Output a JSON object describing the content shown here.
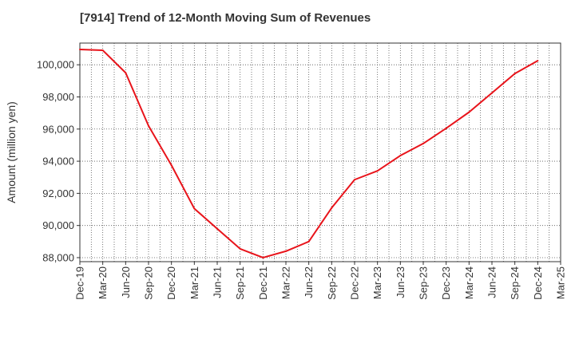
{
  "title": "[7914]  Trend of 12-Month Moving Sum of Revenues",
  "chart_data": {
    "type": "line",
    "title": "[7914]  Trend of 12-Month Moving Sum of Revenues",
    "xlabel": "",
    "ylabel": "Amount (million yen)",
    "x_tick_labels": [
      "Dec-19",
      "Mar-20",
      "Jun-20",
      "Sep-20",
      "Dec-20",
      "Mar-21",
      "Jun-21",
      "Sep-21",
      "Dec-21",
      "Mar-22",
      "Jun-22",
      "Sep-22",
      "Dec-22",
      "Mar-23",
      "Jun-23",
      "Sep-23",
      "Dec-23",
      "Mar-24",
      "Jun-24",
      "Sep-24",
      "Dec-24",
      "Mar-25"
    ],
    "y_ticks": [
      88000,
      90000,
      92000,
      94000,
      96000,
      98000,
      100000
    ],
    "y_tick_labels": [
      "88,000",
      "90,000",
      "92,000",
      "94,000",
      "96,000",
      "98,000",
      "100,000"
    ],
    "ylim": [
      87750,
      101350
    ],
    "grid": true,
    "line_color": "#e8141b",
    "series": [
      {
        "x": [
          "Dec-19",
          "Mar-20",
          "Jun-20",
          "Sep-20",
          "Dec-20",
          "Mar-21",
          "Jun-21",
          "Sep-21",
          "Dec-21",
          "Mar-22",
          "Jun-22",
          "Sep-22",
          "Dec-22",
          "Mar-23",
          "Jun-23",
          "Sep-23",
          "Dec-23",
          "Mar-24",
          "Jun-24",
          "Sep-24",
          "Dec-24"
        ],
        "values": [
          100950,
          100900,
          99500,
          96200,
          93750,
          91050,
          89800,
          88550,
          88000,
          88400,
          89000,
          91100,
          92850,
          93400,
          94350,
          95100,
          96050,
          97050,
          98250,
          99450,
          100250
        ]
      }
    ]
  }
}
